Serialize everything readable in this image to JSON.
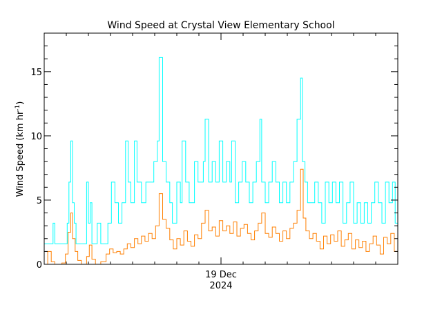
{
  "chart_data": {
    "type": "line",
    "title": "Wind Speed at Crystal View Elementary School",
    "ylabel": "Wind Speed (km hr",
    "ylabel_sup": "-1",
    "ylabel_close": ")",
    "xtick_label_line1": "19 Dec",
    "xtick_label_line2": "2024",
    "ylim": [
      0,
      18
    ],
    "xlim_days": [
      -2.0,
      2.0
    ],
    "xtick_day": 0,
    "yticks": [
      {
        "v": 0,
        "label": "0"
      },
      {
        "v": 5,
        "label": "5"
      },
      {
        "v": 10,
        "label": "10"
      },
      {
        "v": 15,
        "label": "15"
      }
    ],
    "series": [
      {
        "role": "gust",
        "color": "#00ffff",
        "points": [
          [
            -2.0,
            1.6
          ],
          [
            -1.92,
            1.6
          ],
          [
            -1.9,
            3.2
          ],
          [
            -1.88,
            1.6
          ],
          [
            -1.8,
            1.6
          ],
          [
            -1.74,
            3.2
          ],
          [
            -1.72,
            6.4
          ],
          [
            -1.7,
            9.6
          ],
          [
            -1.68,
            4.8
          ],
          [
            -1.66,
            3.2
          ],
          [
            -1.64,
            1.6
          ],
          [
            -1.54,
            1.6
          ],
          [
            -1.52,
            6.4
          ],
          [
            -1.5,
            3.2
          ],
          [
            -1.48,
            4.8
          ],
          [
            -1.46,
            1.6
          ],
          [
            -1.4,
            3.2
          ],
          [
            -1.36,
            1.6
          ],
          [
            -1.3,
            1.6
          ],
          [
            -1.28,
            3.2
          ],
          [
            -1.24,
            6.4
          ],
          [
            -1.2,
            4.8
          ],
          [
            -1.16,
            3.2
          ],
          [
            -1.12,
            4.8
          ],
          [
            -1.08,
            9.6
          ],
          [
            -1.05,
            6.4
          ],
          [
            -1.02,
            4.8
          ],
          [
            -0.98,
            9.6
          ],
          [
            -0.95,
            6.4
          ],
          [
            -0.9,
            4.8
          ],
          [
            -0.85,
            6.4
          ],
          [
            -0.8,
            6.4
          ],
          [
            -0.76,
            8.0
          ],
          [
            -0.72,
            9.6
          ],
          [
            -0.7,
            16.1
          ],
          [
            -0.66,
            8.0
          ],
          [
            -0.62,
            6.4
          ],
          [
            -0.58,
            4.8
          ],
          [
            -0.55,
            3.2
          ],
          [
            -0.5,
            6.4
          ],
          [
            -0.46,
            4.8
          ],
          [
            -0.44,
            9.6
          ],
          [
            -0.4,
            6.4
          ],
          [
            -0.36,
            4.8
          ],
          [
            -0.3,
            8.0
          ],
          [
            -0.26,
            6.4
          ],
          [
            -0.2,
            8.0
          ],
          [
            -0.18,
            11.3
          ],
          [
            -0.14,
            6.4
          ],
          [
            -0.1,
            8.0
          ],
          [
            -0.06,
            6.4
          ],
          [
            -0.02,
            9.6
          ],
          [
            0.02,
            6.4
          ],
          [
            0.06,
            8.0
          ],
          [
            0.1,
            6.4
          ],
          [
            0.12,
            9.6
          ],
          [
            0.16,
            4.8
          ],
          [
            0.2,
            6.4
          ],
          [
            0.24,
            8.0
          ],
          [
            0.28,
            6.4
          ],
          [
            0.32,
            4.8
          ],
          [
            0.36,
            6.4
          ],
          [
            0.4,
            8.0
          ],
          [
            0.44,
            11.3
          ],
          [
            0.46,
            6.4
          ],
          [
            0.5,
            4.8
          ],
          [
            0.54,
            6.4
          ],
          [
            0.58,
            8.0
          ],
          [
            0.62,
            6.4
          ],
          [
            0.66,
            4.8
          ],
          [
            0.7,
            6.4
          ],
          [
            0.74,
            4.8
          ],
          [
            0.78,
            6.4
          ],
          [
            0.82,
            8.0
          ],
          [
            0.86,
            11.3
          ],
          [
            0.9,
            14.5
          ],
          [
            0.92,
            8.0
          ],
          [
            0.95,
            6.4
          ],
          [
            0.98,
            4.8
          ],
          [
            1.02,
            4.8
          ],
          [
            1.06,
            6.4
          ],
          [
            1.1,
            4.8
          ],
          [
            1.14,
            3.2
          ],
          [
            1.18,
            6.4
          ],
          [
            1.22,
            4.8
          ],
          [
            1.26,
            6.4
          ],
          [
            1.3,
            4.8
          ],
          [
            1.34,
            6.4
          ],
          [
            1.38,
            3.2
          ],
          [
            1.42,
            4.8
          ],
          [
            1.46,
            6.4
          ],
          [
            1.5,
            3.2
          ],
          [
            1.54,
            4.8
          ],
          [
            1.58,
            3.2
          ],
          [
            1.62,
            4.8
          ],
          [
            1.66,
            3.2
          ],
          [
            1.7,
            4.8
          ],
          [
            1.74,
            6.4
          ],
          [
            1.78,
            4.8
          ],
          [
            1.82,
            3.2
          ],
          [
            1.86,
            6.4
          ],
          [
            1.9,
            4.8
          ],
          [
            1.94,
            6.4
          ],
          [
            1.97,
            3.2
          ],
          [
            2.0,
            4.8
          ]
        ]
      },
      {
        "role": "average",
        "color": "#ff7f00",
        "points": [
          [
            -2.0,
            0.0
          ],
          [
            -1.96,
            1.0
          ],
          [
            -1.92,
            0.2
          ],
          [
            -1.88,
            0.0
          ],
          [
            -1.8,
            0.1
          ],
          [
            -1.76,
            0.8
          ],
          [
            -1.73,
            2.5
          ],
          [
            -1.7,
            4.0
          ],
          [
            -1.68,
            2.0
          ],
          [
            -1.65,
            1.0
          ],
          [
            -1.62,
            0.3
          ],
          [
            -1.58,
            0.0
          ],
          [
            -1.52,
            0.6
          ],
          [
            -1.49,
            1.5
          ],
          [
            -1.46,
            0.4
          ],
          [
            -1.42,
            0.0
          ],
          [
            -1.36,
            0.2
          ],
          [
            -1.3,
            0.8
          ],
          [
            -1.26,
            1.2
          ],
          [
            -1.22,
            0.9
          ],
          [
            -1.18,
            1.0
          ],
          [
            -1.14,
            0.8
          ],
          [
            -1.1,
            1.2
          ],
          [
            -1.06,
            1.6
          ],
          [
            -1.02,
            1.3
          ],
          [
            -0.98,
            2.0
          ],
          [
            -0.94,
            1.6
          ],
          [
            -0.9,
            2.2
          ],
          [
            -0.86,
            1.8
          ],
          [
            -0.82,
            2.4
          ],
          [
            -0.78,
            2.0
          ],
          [
            -0.74,
            3.0
          ],
          [
            -0.7,
            5.5
          ],
          [
            -0.66,
            3.5
          ],
          [
            -0.62,
            2.8
          ],
          [
            -0.58,
            1.9
          ],
          [
            -0.54,
            1.2
          ],
          [
            -0.5,
            2.0
          ],
          [
            -0.46,
            1.5
          ],
          [
            -0.42,
            2.6
          ],
          [
            -0.38,
            1.8
          ],
          [
            -0.34,
            1.4
          ],
          [
            -0.3,
            2.3
          ],
          [
            -0.26,
            2.0
          ],
          [
            -0.22,
            3.2
          ],
          [
            -0.18,
            4.2
          ],
          [
            -0.14,
            2.6
          ],
          [
            -0.1,
            2.9
          ],
          [
            -0.06,
            2.2
          ],
          [
            -0.02,
            3.4
          ],
          [
            0.02,
            2.6
          ],
          [
            0.06,
            3.0
          ],
          [
            0.1,
            2.4
          ],
          [
            0.14,
            3.3
          ],
          [
            0.18,
            2.2
          ],
          [
            0.22,
            2.8
          ],
          [
            0.26,
            3.1
          ],
          [
            0.3,
            2.4
          ],
          [
            0.34,
            1.9
          ],
          [
            0.38,
            2.6
          ],
          [
            0.42,
            3.2
          ],
          [
            0.46,
            4.0
          ],
          [
            0.5,
            2.4
          ],
          [
            0.54,
            2.1
          ],
          [
            0.58,
            2.9
          ],
          [
            0.62,
            2.4
          ],
          [
            0.66,
            1.8
          ],
          [
            0.7,
            2.6
          ],
          [
            0.74,
            2.0
          ],
          [
            0.78,
            2.8
          ],
          [
            0.82,
            3.2
          ],
          [
            0.86,
            4.2
          ],
          [
            0.9,
            7.4
          ],
          [
            0.93,
            3.6
          ],
          [
            0.96,
            2.6
          ],
          [
            1.0,
            2.0
          ],
          [
            1.04,
            2.4
          ],
          [
            1.08,
            1.8
          ],
          [
            1.12,
            1.2
          ],
          [
            1.16,
            2.2
          ],
          [
            1.2,
            1.6
          ],
          [
            1.24,
            2.3
          ],
          [
            1.28,
            1.8
          ],
          [
            1.32,
            2.6
          ],
          [
            1.36,
            1.4
          ],
          [
            1.4,
            1.9
          ],
          [
            1.44,
            2.4
          ],
          [
            1.48,
            1.2
          ],
          [
            1.52,
            1.9
          ],
          [
            1.56,
            1.3
          ],
          [
            1.6,
            1.8
          ],
          [
            1.64,
            1.0
          ],
          [
            1.68,
            1.6
          ],
          [
            1.72,
            2.2
          ],
          [
            1.76,
            1.5
          ],
          [
            1.8,
            0.8
          ],
          [
            1.84,
            2.1
          ],
          [
            1.88,
            1.6
          ],
          [
            1.92,
            2.4
          ],
          [
            1.96,
            1.0
          ],
          [
            2.0,
            1.8
          ]
        ]
      }
    ]
  }
}
